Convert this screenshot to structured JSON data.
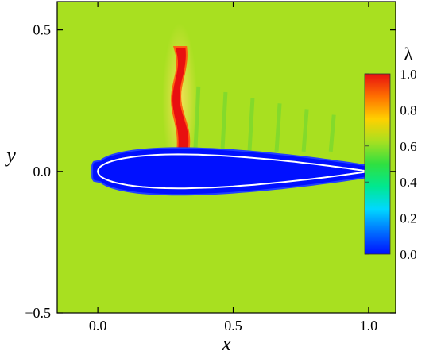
{
  "chart_data": {
    "type": "heatmap",
    "title": "",
    "xlabel": "x",
    "ylabel": "y",
    "xlim": [
      -0.15,
      1.1
    ],
    "ylim": [
      -0.5,
      0.6
    ],
    "x_ticks": [
      {
        "value": 0.0,
        "label": "0.0"
      },
      {
        "value": 0.5,
        "label": "0.5"
      },
      {
        "value": 1.0,
        "label": "1.0"
      }
    ],
    "y_ticks": [
      {
        "value": 0.5,
        "label": "0.5"
      },
      {
        "value": 0.0,
        "label": "0.0"
      },
      {
        "value": -0.5,
        "label": "−0.5"
      }
    ],
    "colorbar": {
      "label": "λ",
      "range": [
        0.0,
        1.0
      ],
      "ticks": [
        {
          "value": 1.0,
          "label": "1.0"
        },
        {
          "value": 0.8,
          "label": "0.8"
        },
        {
          "value": 0.6,
          "label": "0.6"
        },
        {
          "value": 0.4,
          "label": "0.4"
        },
        {
          "value": 0.2,
          "label": "0.2"
        },
        {
          "value": 0.0,
          "label": "0.0"
        }
      ],
      "colors": [
        "#0010ff",
        "#0070ff",
        "#00d8ff",
        "#00e890",
        "#30e040",
        "#a8e020",
        "#ffd000",
        "#ff7000",
        "#e81010"
      ]
    },
    "background_value": 0.58,
    "airfoil": {
      "chord_start": 0.0,
      "chord_end": 1.0,
      "value": 0.0,
      "outline_color": "#ffffff"
    },
    "wake_streak": {
      "value": 1.0,
      "x_base": 0.31,
      "y_base": 0.06,
      "x_top": 0.295,
      "y_top": 0.44
    }
  }
}
